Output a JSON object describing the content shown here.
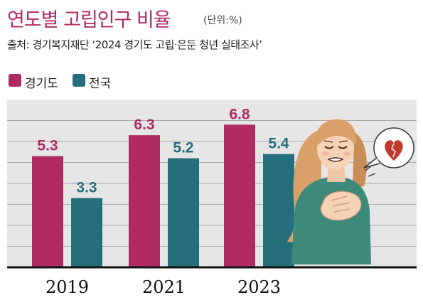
{
  "title": "연도별 고립인구 비율",
  "unit": "(단위:%)",
  "source": "출처: 경기복지재단 ‘2024 경기도 고립·은둔 청년 실태조사’",
  "colors": {
    "gyeonggi": "#ae2a5f",
    "national": "#256f7c",
    "grid": "#aaaaaa",
    "panel": "#e6e6e6"
  },
  "chart_data": {
    "type": "bar",
    "categories": [
      "2019",
      "2021",
      "2023"
    ],
    "series": [
      {
        "name": "경기도",
        "values": [
          5.3,
          6.3,
          6.8
        ]
      },
      {
        "name": "전국",
        "values": [
          3.3,
          5.2,
          5.4
        ]
      }
    ],
    "ylim": [
      0,
      8
    ],
    "grid": true,
    "legend": "top-left",
    "title": "연도별 고립인구 비율",
    "xlabel": "",
    "ylabel": ""
  }
}
